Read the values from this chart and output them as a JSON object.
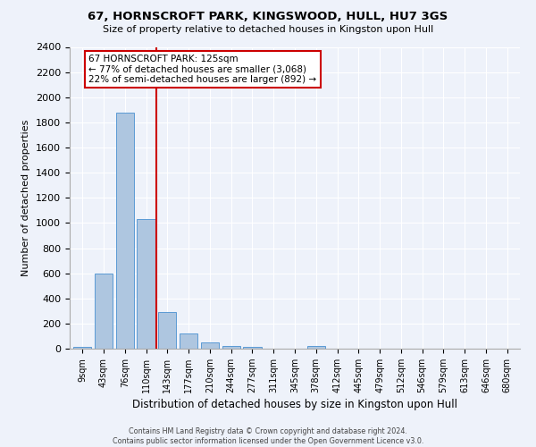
{
  "title1": "67, HORNSCROFT PARK, KINGSWOOD, HULL, HU7 3GS",
  "title2": "Size of property relative to detached houses in Kingston upon Hull",
  "xlabel": "Distribution of detached houses by size in Kingston upon Hull",
  "ylabel": "Number of detached properties",
  "categories": [
    "9sqm",
    "43sqm",
    "76sqm",
    "110sqm",
    "143sqm",
    "177sqm",
    "210sqm",
    "244sqm",
    "277sqm",
    "311sqm",
    "345sqm",
    "378sqm",
    "412sqm",
    "445sqm",
    "479sqm",
    "512sqm",
    "546sqm",
    "579sqm",
    "613sqm",
    "646sqm",
    "680sqm"
  ],
  "values": [
    15,
    600,
    1880,
    1030,
    290,
    120,
    50,
    20,
    15,
    0,
    0,
    20,
    0,
    0,
    0,
    0,
    0,
    0,
    0,
    0,
    0
  ],
  "bar_color": "#aec6e0",
  "bar_edge_color": "#5b9bd5",
  "vline_color": "#cc0000",
  "annotation_title": "67 HORNSCROFT PARK: 125sqm",
  "annotation_line2": "← 77% of detached houses are smaller (3,068)",
  "annotation_line3": "22% of semi-detached houses are larger (892) →",
  "ylim": [
    0,
    2400
  ],
  "yticks": [
    0,
    200,
    400,
    600,
    800,
    1000,
    1200,
    1400,
    1600,
    1800,
    2000,
    2200,
    2400
  ],
  "footer1": "Contains HM Land Registry data © Crown copyright and database right 2024.",
  "footer2": "Contains public sector information licensed under the Open Government Licence v3.0.",
  "bg_color": "#eef2fa"
}
